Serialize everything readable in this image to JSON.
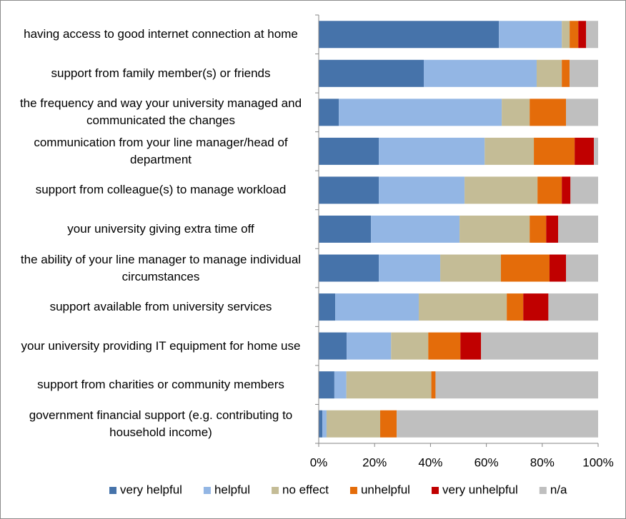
{
  "chart_data": {
    "type": "bar",
    "orientation": "horizontal",
    "stacked": true,
    "categories": [
      "having access to good internet connection at home",
      "support from family member(s) or friends",
      "the frequency and way your university managed and communicated the changes",
      "communication from your line manager/head of department",
      "support from colleague(s) to manage workload",
      "your university giving extra time off",
      "the ability of your line manager to manage individual circumstances",
      "support available from university services",
      "your university providing IT equipment for home use",
      "support from charities or community members",
      "government financial support (e.g. contributing to household income)"
    ],
    "series": [
      {
        "name": "very helpful",
        "color": "#4673aa",
        "values": [
          64.5,
          37.6,
          7.2,
          21.5,
          21.5,
          18.7,
          21.5,
          5.9,
          10,
          5.6,
          1.3
        ]
      },
      {
        "name": "helpful",
        "color": "#93b6e4",
        "values": [
          22.5,
          40.4,
          58.3,
          37.9,
          30.7,
          31.7,
          22,
          29.9,
          15.9,
          4.3,
          1.5
        ]
      },
      {
        "name": "no effect",
        "color": "#c4bc96",
        "values": [
          2.8,
          9,
          10,
          17.6,
          26.1,
          25.1,
          21.7,
          31.5,
          13.3,
          30.4,
          19.2
        ]
      },
      {
        "name": "unhelpful",
        "color": "#e46c0a",
        "values": [
          3.1,
          2.8,
          13,
          14.6,
          8.7,
          5.9,
          17.4,
          5.9,
          11.5,
          1.5,
          5.9
        ]
      },
      {
        "name": "very unhelpful",
        "color": "#c00000",
        "values": [
          2.8,
          0,
          0,
          6.9,
          3.1,
          4.3,
          5.9,
          9,
          7.4,
          0,
          0
        ]
      },
      {
        "name": "n/a",
        "color": "#bfbfbf",
        "values": [
          4.3,
          10.2,
          11.5,
          1.5,
          9.9,
          14.3,
          11.5,
          17.8,
          41.9,
          58.2,
          72.1
        ]
      }
    ],
    "xlim": [
      0,
      100
    ],
    "xticks": [
      {
        "value": 0,
        "label": "0%"
      },
      {
        "value": 20,
        "label": "20%"
      },
      {
        "value": 40,
        "label": "40%"
      },
      {
        "value": 60,
        "label": "60%"
      },
      {
        "value": 80,
        "label": "80%"
      },
      {
        "value": 100,
        "label": "100%"
      }
    ],
    "legend": "bottom"
  }
}
